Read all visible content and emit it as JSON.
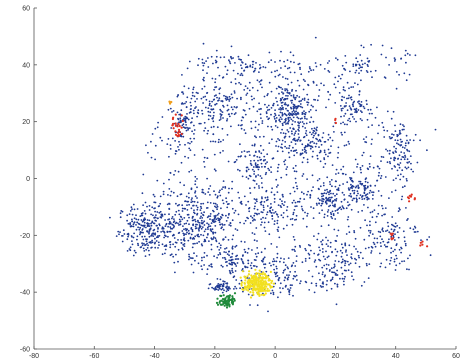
{
  "chart_data": {
    "type": "scatter",
    "title": "",
    "xlabel": "",
    "ylabel": "",
    "xlim": [
      -60,
      60
    ],
    "ylim": [
      -60,
      60
    ],
    "xticks": [
      -80,
      -60,
      -40,
      -20,
      0,
      20,
      40,
      60
    ],
    "yticks": [
      -60,
      -40,
      -20,
      0,
      20,
      40,
      60
    ],
    "xtick_labels": [
      "-80",
      "-60",
      "-40",
      "-20",
      "0",
      "20",
      "40",
      "60"
    ],
    "ytick_labels": [
      "-60",
      "-40",
      "-20",
      "0",
      "20",
      "40",
      "60"
    ],
    "grid": false,
    "legend": "none",
    "colors": {
      "main": "#1f3a93",
      "red": "#e03020",
      "yellow": "#f2e020",
      "green": "#1f8a3a",
      "orange": "#f0a020"
    },
    "clusters": [
      {
        "color": "main",
        "cx": -42,
        "cy": -18,
        "rx": 10,
        "ry": 9,
        "n": 260
      },
      {
        "color": "main",
        "cx": -25,
        "cy": -15,
        "rx": 14,
        "ry": 12,
        "n": 320
      },
      {
        "color": "main",
        "cx": -15,
        "cy": -30,
        "rx": 8,
        "ry": 6,
        "n": 80
      },
      {
        "color": "main",
        "cx": -18,
        "cy": 25,
        "rx": 12,
        "ry": 10,
        "n": 140
      },
      {
        "color": "main",
        "cx": 5,
        "cy": 25,
        "rx": 9,
        "ry": 9,
        "n": 220
      },
      {
        "color": "main",
        "cx": 10,
        "cy": 12,
        "rx": 10,
        "ry": 6,
        "n": 120
      },
      {
        "color": "main",
        "cx": -30,
        "cy": 20,
        "rx": 4,
        "ry": 10,
        "n": 90
      },
      {
        "color": "main",
        "cx": 18,
        "cy": -8,
        "rx": 5,
        "ry": 6,
        "n": 100
      },
      {
        "color": "main",
        "cx": 28,
        "cy": -5,
        "rx": 6,
        "ry": 6,
        "n": 90
      },
      {
        "color": "main",
        "cx": 25,
        "cy": 25,
        "rx": 6,
        "ry": 6,
        "n": 70
      },
      {
        "color": "main",
        "cx": -5,
        "cy": 5,
        "rx": 8,
        "ry": 6,
        "n": 70
      },
      {
        "color": "main",
        "cx": 0,
        "cy": -10,
        "rx": 10,
        "ry": 8,
        "n": 90
      },
      {
        "color": "main",
        "cx": 0,
        "cy": -35,
        "rx": 14,
        "ry": 8,
        "n": 110
      },
      {
        "color": "main",
        "cx": 20,
        "cy": -30,
        "rx": 10,
        "ry": 10,
        "n": 100
      },
      {
        "color": "main",
        "cx": 38,
        "cy": -20,
        "rx": 10,
        "ry": 12,
        "n": 110
      },
      {
        "color": "main",
        "cx": 40,
        "cy": 10,
        "rx": 8,
        "ry": 12,
        "n": 100
      },
      {
        "color": "main",
        "cx": -8,
        "cy": 40,
        "rx": 20,
        "ry": 5,
        "n": 90
      },
      {
        "color": "main",
        "cx": 30,
        "cy": 40,
        "rx": 14,
        "ry": 6,
        "n": 80
      },
      {
        "color": "main",
        "cx": 0,
        "cy": 0,
        "rx": 45,
        "ry": 42,
        "n": 700
      },
      {
        "color": "yellow",
        "cx": -6,
        "cy": -37,
        "rx": 4.5,
        "ry": 3.8,
        "n": 220
      },
      {
        "color": "green",
        "cx": -16,
        "cy": -43,
        "rx": 2.8,
        "ry": 2.2,
        "n": 70
      },
      {
        "color": "main",
        "cx": -18,
        "cy": -38,
        "rx": 3,
        "ry": 2,
        "n": 50
      },
      {
        "color": "red",
        "cx": -32,
        "cy": 18,
        "rx": 2.5,
        "ry": 4,
        "n": 25
      },
      {
        "color": "red",
        "cx": 45,
        "cy": -7,
        "rx": 1.5,
        "ry": 1.5,
        "n": 8
      },
      {
        "color": "red",
        "cx": 39,
        "cy": -20,
        "rx": 0.8,
        "ry": 2.5,
        "n": 6
      },
      {
        "color": "red",
        "cx": 49,
        "cy": -23,
        "rx": 1.2,
        "ry": 1,
        "n": 5
      },
      {
        "color": "red",
        "cx": 20,
        "cy": 20,
        "rx": 1,
        "ry": 1,
        "n": 3
      },
      {
        "color": "orange",
        "cx": -35,
        "cy": 27,
        "rx": 0.8,
        "ry": 0.8,
        "n": 4
      }
    ]
  }
}
